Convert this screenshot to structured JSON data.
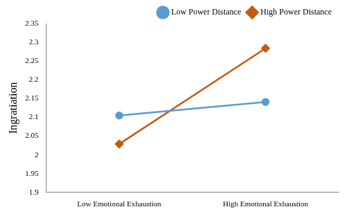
{
  "chart_data": {
    "type": "line",
    "categories": [
      "Low Emotional Exhaustion",
      "High Emotional Exhaustion"
    ],
    "y_label": "Ingratiation",
    "series": [
      {
        "name": "Low Power Distance",
        "color": "#5b9bd5",
        "marker": "circle",
        "values": [
          2.105,
          2.141
        ]
      },
      {
        "name": "High Power Distance",
        "color": "#c55a11",
        "marker": "diamond",
        "values": [
          2.029,
          2.284
        ]
      }
    ],
    "ylim": [
      1.9,
      2.35
    ],
    "yticks": [
      1.9,
      1.95,
      2,
      2.05,
      2.1,
      2.15,
      2.2,
      2.25,
      2.3,
      2.35
    ],
    "grid": false,
    "legend": "upper right"
  }
}
